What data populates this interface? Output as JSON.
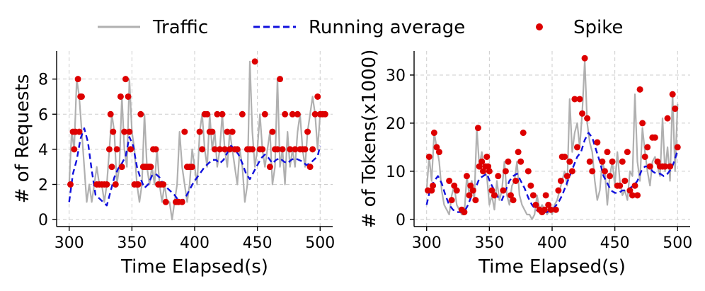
{
  "legend": {
    "placement": "top-center",
    "items": [
      {
        "label": "Traffic",
        "color": "#b0b0b0",
        "style": "solid-line"
      },
      {
        "label": "Running average",
        "color": "#1010dd",
        "style": "dashed-line"
      },
      {
        "label": "Spike",
        "color": "#dd0000",
        "style": "marker"
      }
    ]
  },
  "chart_data": [
    {
      "type": "line",
      "xlabel": "Time Elapsed(s)",
      "ylabel": "# of Requests",
      "xlim": [
        290,
        510
      ],
      "ylim": [
        -0.4,
        9.6
      ],
      "xticks": [
        300,
        350,
        400,
        450,
        500
      ],
      "yticks": [
        0,
        2,
        4,
        6,
        8
      ],
      "grid": true,
      "series": [
        {
          "name": "Traffic",
          "color": "#b0b0b0",
          "x": [
            300,
            302,
            304,
            306,
            308,
            310,
            312,
            314,
            316,
            318,
            320,
            322,
            324,
            326,
            328,
            330,
            332,
            334,
            336,
            338,
            340,
            342,
            344,
            346,
            348,
            350,
            352,
            354,
            356,
            358,
            360,
            362,
            364,
            366,
            368,
            370,
            372,
            374,
            376,
            378,
            380,
            382,
            384,
            386,
            388,
            390,
            392,
            394,
            396,
            398,
            400,
            402,
            404,
            406,
            408,
            410,
            412,
            414,
            416,
            418,
            420,
            422,
            424,
            426,
            428,
            430,
            432,
            434,
            436,
            438,
            440,
            442,
            444,
            446,
            448,
            450,
            452,
            454,
            456,
            458,
            460,
            462,
            464,
            466,
            468,
            470,
            472,
            474,
            476,
            478,
            480,
            482,
            484,
            486,
            488,
            490,
            492,
            494,
            496,
            498,
            500
          ],
          "y": [
            2,
            5,
            4,
            8,
            7,
            5,
            3,
            1,
            2,
            1,
            2,
            3,
            2,
            2,
            1,
            2,
            4,
            6,
            5,
            2,
            3,
            7,
            4,
            3,
            8,
            5,
            4,
            2,
            1,
            2,
            6,
            3,
            2,
            3,
            2,
            4,
            2,
            1,
            2,
            1,
            1,
            0,
            1,
            2,
            5,
            3,
            2,
            1,
            2,
            4,
            3,
            2,
            5,
            6,
            4,
            3,
            6,
            4,
            5,
            3,
            4,
            6,
            4,
            3,
            5,
            4,
            3,
            2,
            4,
            3,
            1,
            2,
            9,
            5,
            3,
            4,
            6,
            4,
            3,
            4,
            5,
            2,
            3,
            8,
            3,
            4,
            2,
            5,
            3,
            4,
            3,
            5,
            6,
            4,
            3,
            5,
            6,
            7,
            6,
            4,
            6
          ]
        },
        {
          "name": "Running average",
          "color": "#1010dd",
          "x": [
            300,
            303,
            306,
            309,
            312,
            315,
            318,
            321,
            324,
            327,
            330,
            333,
            336,
            339,
            342,
            345,
            348,
            351,
            354,
            357,
            360,
            363,
            366,
            369,
            372,
            375,
            378,
            381,
            384,
            387,
            390,
            393,
            396,
            399,
            402,
            405,
            408,
            411,
            414,
            417,
            420,
            423,
            426,
            429,
            432,
            435,
            438,
            441,
            444,
            447,
            450,
            453,
            456,
            459,
            462,
            465,
            468,
            471,
            474,
            477,
            480,
            483,
            486,
            489,
            492,
            495,
            498,
            500
          ],
          "y": [
            1.0,
            2.6,
            3.4,
            4.6,
            5.2,
            4.4,
            2.8,
            1.4,
            1.2,
            1.0,
            0.8,
            1.6,
            2.4,
            2.9,
            3.2,
            3.6,
            4.7,
            4.2,
            3.0,
            2.3,
            1.8,
            2.0,
            2.5,
            2.6,
            2.4,
            2.0,
            1.8,
            1.6,
            1.4,
            1.1,
            1.0,
            1.3,
            1.7,
            2.1,
            2.4,
            2.7,
            3.0,
            3.2,
            3.4,
            3.4,
            3.2,
            3.4,
            3.8,
            4.2,
            4.0,
            3.7,
            3.2,
            2.6,
            2.3,
            2.7,
            3.1,
            3.5,
            3.7,
            3.5,
            3.2,
            3.4,
            3.5,
            3.3,
            3.2,
            3.4,
            3.5,
            3.4,
            3.3,
            3.1,
            3.2,
            3.4,
            3.6,
            4.2
          ]
        },
        {
          "name": "Spike",
          "color": "#dd0000",
          "x": [
            301,
            303,
            304,
            305,
            307,
            308,
            309,
            310,
            322,
            324,
            326,
            328,
            330,
            332,
            333,
            334,
            335,
            337,
            338,
            341,
            342,
            344,
            345,
            347,
            348,
            349,
            352,
            354,
            355,
            357,
            359,
            360,
            361,
            363,
            364,
            365,
            367,
            369,
            371,
            373,
            375,
            377,
            385,
            387,
            390,
            392,
            394,
            396,
            398,
            404,
            406,
            408,
            410,
            412,
            414,
            416,
            418,
            420,
            422,
            424,
            426,
            428,
            430,
            432,
            434,
            438,
            442,
            444,
            446,
            448,
            452,
            454,
            456,
            460,
            462,
            464,
            466,
            468,
            470,
            472,
            476,
            478,
            480,
            482,
            484,
            486,
            488,
            490,
            492,
            494,
            496,
            498,
            500,
            502,
            504
          ],
          "y": [
            2,
            5,
            4,
            5,
            8,
            5,
            7,
            7,
            2,
            2,
            2,
            2,
            2,
            4,
            6,
            3,
            5,
            2,
            4,
            7,
            3,
            5,
            8,
            7,
            5,
            4,
            2,
            2,
            2,
            6,
            3,
            3,
            3,
            3,
            3,
            3,
            4,
            4,
            2,
            2,
            2,
            1,
            1,
            1,
            1,
            5,
            3,
            3,
            3,
            5,
            4,
            6,
            6,
            5,
            5,
            4,
            6,
            4,
            6,
            4,
            5,
            4,
            5,
            4,
            4,
            6,
            4,
            4,
            4,
            9,
            4,
            4,
            6,
            3,
            5,
            4,
            4,
            8,
            4,
            6,
            4,
            6,
            4,
            6,
            4,
            4,
            4,
            5,
            3,
            4,
            6,
            7,
            6,
            6,
            6
          ]
        }
      ]
    },
    {
      "type": "line",
      "xlabel": "Time Elapsed(s)",
      "ylabel": "# of Tokens(x1000)",
      "xlim": [
        290,
        510
      ],
      "ylim": [
        -1.5,
        35
      ],
      "xticks": [
        300,
        350,
        400,
        450,
        500
      ],
      "yticks": [
        0,
        10,
        20,
        30
      ],
      "grid": true,
      "series": [
        {
          "name": "Traffic",
          "color": "#b0b0b0",
          "x": [
            300,
            302,
            304,
            306,
            308,
            310,
            312,
            314,
            316,
            318,
            320,
            322,
            324,
            326,
            328,
            330,
            332,
            334,
            336,
            338,
            340,
            342,
            344,
            346,
            348,
            350,
            352,
            354,
            356,
            358,
            360,
            362,
            364,
            366,
            368,
            370,
            372,
            374,
            376,
            378,
            380,
            382,
            384,
            386,
            388,
            390,
            392,
            394,
            396,
            398,
            400,
            402,
            404,
            406,
            408,
            410,
            412,
            414,
            416,
            418,
            420,
            422,
            424,
            426,
            428,
            430,
            432,
            434,
            436,
            438,
            440,
            442,
            444,
            446,
            448,
            450,
            452,
            454,
            456,
            458,
            460,
            462,
            464,
            466,
            468,
            470,
            472,
            474,
            476,
            478,
            480,
            482,
            484,
            486,
            488,
            490,
            492,
            494,
            496,
            498,
            500
          ],
          "y": [
            6,
            13,
            8,
            18,
            15,
            12,
            6,
            3,
            2,
            1,
            5,
            7,
            3,
            2,
            1,
            1,
            9,
            5,
            8,
            4,
            19,
            11,
            14,
            10,
            9,
            3,
            5,
            2,
            8,
            4,
            6,
            12,
            5,
            3,
            7,
            8,
            12,
            5,
            3,
            2,
            1,
            1,
            0,
            1,
            5,
            2,
            3,
            2,
            1,
            2,
            1,
            3,
            4,
            6,
            8,
            10,
            7,
            25,
            14,
            18,
            20,
            15,
            22,
            33,
            20,
            16,
            14,
            8,
            4,
            6,
            12,
            10,
            3,
            9,
            12,
            7,
            14,
            8,
            5,
            6,
            4,
            10,
            9,
            26,
            12,
            8,
            19,
            14,
            10,
            7,
            12,
            13,
            11,
            9,
            21,
            10,
            15,
            8,
            26,
            10,
            24
          ]
        },
        {
          "name": "Running average",
          "color": "#1010dd",
          "x": [
            300,
            303,
            306,
            309,
            312,
            315,
            318,
            321,
            324,
            327,
            330,
            333,
            336,
            339,
            342,
            345,
            348,
            351,
            354,
            357,
            360,
            363,
            366,
            369,
            372,
            375,
            378,
            381,
            384,
            387,
            390,
            393,
            396,
            399,
            402,
            405,
            408,
            411,
            414,
            417,
            420,
            423,
            426,
            429,
            432,
            435,
            438,
            441,
            444,
            447,
            450,
            453,
            456,
            459,
            462,
            465,
            468,
            471,
            474,
            477,
            480,
            483,
            486,
            489,
            492,
            495,
            498,
            500
          ],
          "y": [
            3.0,
            6.5,
            8.0,
            9.0,
            7.5,
            5.0,
            3.0,
            2.0,
            1.5,
            1.5,
            1.5,
            3.0,
            5.0,
            6.5,
            8.5,
            9.0,
            9.5,
            7.5,
            6.0,
            4.5,
            4.0,
            6.0,
            8.0,
            9.0,
            9.5,
            8.0,
            6.5,
            4.5,
            3.0,
            2.0,
            1.5,
            1.5,
            1.5,
            2.0,
            2.5,
            3.5,
            5.0,
            7.0,
            9.0,
            11.0,
            13.0,
            14.0,
            16.5,
            18.0,
            17.0,
            14.5,
            12.0,
            9.0,
            7.5,
            6.0,
            5.5,
            5.5,
            6.0,
            6.0,
            6.5,
            7.0,
            8.0,
            10.0,
            11.0,
            11.0,
            10.0,
            9.5,
            9.5,
            9.0,
            9.5,
            10.5,
            12.5,
            14.5
          ]
        },
        {
          "name": "Spike",
          "color": "#dd0000",
          "x": [
            301,
            302,
            304,
            305,
            306,
            308,
            310,
            318,
            320,
            322,
            324,
            328,
            330,
            332,
            334,
            335,
            337,
            339,
            341,
            342,
            344,
            345,
            347,
            348,
            349,
            350,
            352,
            354,
            357,
            361,
            363,
            365,
            367,
            369,
            371,
            373,
            375,
            377,
            381,
            383,
            385,
            387,
            390,
            392,
            394,
            395,
            397,
            399,
            403,
            405,
            407,
            408,
            410,
            412,
            414,
            416,
            418,
            420,
            422,
            424,
            426,
            428,
            430,
            432,
            436,
            440,
            442,
            444,
            446,
            448,
            452,
            454,
            456,
            458,
            460,
            462,
            464,
            466,
            468,
            470,
            472,
            474,
            476,
            478,
            480,
            482,
            484,
            486,
            488,
            490,
            492,
            494,
            496,
            498,
            500
          ],
          "y": [
            6,
            13,
            6,
            7,
            18,
            15,
            14,
            8,
            4,
            7,
            6,
            2,
            1.5,
            9,
            5,
            7,
            6,
            4,
            19,
            11,
            12,
            10,
            11,
            13,
            11,
            10,
            6,
            5,
            9,
            6,
            10,
            12,
            5,
            4,
            8,
            14,
            12,
            18,
            10,
            7,
            5,
            3,
            2,
            1.5,
            2,
            5,
            3,
            2,
            2,
            6,
            8,
            13,
            13,
            9,
            12,
            10,
            25,
            15,
            25,
            22,
            33.5,
            21,
            12,
            10,
            16,
            12,
            10,
            14,
            9,
            12,
            7,
            7,
            12,
            8,
            14,
            6,
            5,
            7,
            5,
            27,
            20,
            13,
            15,
            11,
            17,
            17,
            12,
            11,
            11,
            11,
            21,
            11,
            26,
            23,
            15
          ]
        }
      ]
    }
  ]
}
